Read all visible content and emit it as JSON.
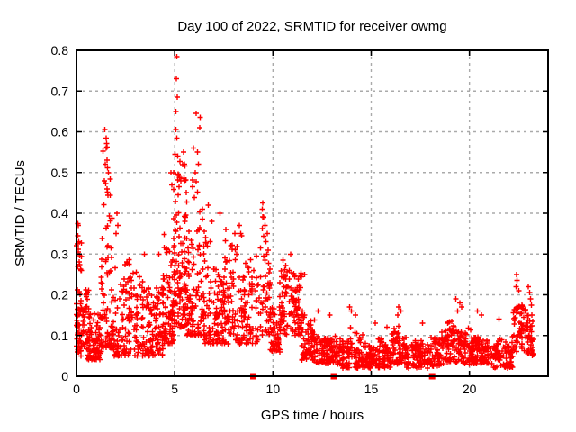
{
  "chart_data": {
    "type": "scatter",
    "title": "Day 100 of 2022, SRMTID for receiver owmg",
    "xlabel": "GPS time / hours",
    "ylabel": "SRMTID / TECUs",
    "xlim": [
      0,
      24
    ],
    "ylim": [
      0,
      0.8
    ],
    "xticks": [
      0,
      5,
      10,
      15,
      20
    ],
    "xtick_labels": [
      "0",
      "5",
      "10",
      "15",
      "20"
    ],
    "yticks": [
      0,
      0.1,
      0.2,
      0.3,
      0.4,
      0.5,
      0.6,
      0.7,
      0.8
    ],
    "ytick_labels": [
      "0",
      "0.1",
      "0.2",
      "0.3",
      "0.4",
      "0.5",
      "0.6",
      "0.7",
      "0.8"
    ],
    "grid": true,
    "legend": "none",
    "marker": "plus",
    "marker_color": "#ff0000",
    "grid_color": "#aaaaaa",
    "border_color": "#000000",
    "background_color": "#ffffff",
    "description": "Dense red '+' scatter of SRMTID vs GPS time; high variance 0-11.5 h with spikes near 1.5 h (0.61), 5.1 h (0.79), 6.2 h (0.65), 9.5 h (0.42); quiet band 0.02-0.15 from 11.5-22 h rising to ~0.25 near 23 h; three red square markers on the x-axis.",
    "density_cluster_fields": [
      "x_start",
      "x_end",
      "y_min",
      "y_max",
      "n_points",
      "low_bias_skew"
    ],
    "density_clusters": [
      [
        0.0,
        0.35,
        0.05,
        0.25,
        55,
        1.4
      ],
      [
        0.0,
        0.25,
        0.24,
        0.38,
        10,
        1.0
      ],
      [
        0.35,
        1.25,
        0.04,
        0.22,
        110,
        1.5
      ],
      [
        1.25,
        1.8,
        0.07,
        0.45,
        65,
        1.9
      ],
      [
        1.35,
        1.7,
        0.42,
        0.61,
        10,
        1.0
      ],
      [
        1.8,
        2.7,
        0.05,
        0.33,
        95,
        1.8
      ],
      [
        2.7,
        4.4,
        0.05,
        0.27,
        160,
        1.7
      ],
      [
        4.4,
        4.95,
        0.08,
        0.48,
        75,
        1.8
      ],
      [
        4.95,
        5.6,
        0.12,
        0.6,
        120,
        1.6
      ],
      [
        5.6,
        6.5,
        0.1,
        0.52,
        110,
        1.7
      ],
      [
        6.5,
        8.2,
        0.08,
        0.36,
        170,
        1.7
      ],
      [
        8.2,
        9.3,
        0.08,
        0.3,
        95,
        1.6
      ],
      [
        9.35,
        9.85,
        0.1,
        0.41,
        45,
        1.2
      ],
      [
        9.85,
        10.35,
        0.06,
        0.22,
        50,
        1.5
      ],
      [
        10.35,
        11.45,
        0.1,
        0.28,
        115,
        1.3
      ],
      [
        11.45,
        12.1,
        0.04,
        0.2,
        65,
        1.5
      ],
      [
        12.1,
        13.2,
        0.03,
        0.13,
        95,
        1.3
      ],
      [
        13.2,
        14.6,
        0.02,
        0.13,
        115,
        1.3
      ],
      [
        14.6,
        16.0,
        0.02,
        0.11,
        120,
        1.2
      ],
      [
        16.0,
        16.8,
        0.03,
        0.14,
        70,
        1.2
      ],
      [
        16.8,
        18.6,
        0.02,
        0.1,
        140,
        1.2
      ],
      [
        18.6,
        20.1,
        0.03,
        0.14,
        135,
        1.2
      ],
      [
        20.1,
        21.1,
        0.03,
        0.13,
        90,
        1.2
      ],
      [
        21.1,
        22.2,
        0.02,
        0.12,
        90,
        1.2
      ],
      [
        22.2,
        22.65,
        0.06,
        0.21,
        40,
        1.1
      ],
      [
        22.65,
        23.25,
        0.05,
        0.2,
        60,
        1.0
      ]
    ],
    "peak_points": [
      [
        0.07,
        0.375
      ],
      [
        0.1,
        0.37
      ],
      [
        0.08,
        0.345
      ],
      [
        0.12,
        0.33
      ],
      [
        0.05,
        0.325
      ],
      [
        0.1,
        0.305
      ],
      [
        0.06,
        0.27
      ],
      [
        1.45,
        0.605
      ],
      [
        1.5,
        0.585
      ],
      [
        1.52,
        0.56
      ],
      [
        1.56,
        0.53
      ],
      [
        1.47,
        0.52
      ],
      [
        1.62,
        0.5
      ],
      [
        1.42,
        0.48
      ],
      [
        1.55,
        0.46
      ],
      [
        2.05,
        0.4
      ],
      [
        2.1,
        0.37
      ],
      [
        2.02,
        0.35
      ],
      [
        3.45,
        0.3
      ],
      [
        4.2,
        0.3
      ],
      [
        4.82,
        0.5
      ],
      [
        4.86,
        0.47
      ],
      [
        5.1,
        0.785
      ],
      [
        5.08,
        0.73
      ],
      [
        5.12,
        0.685
      ],
      [
        5.05,
        0.65
      ],
      [
        5.06,
        0.605
      ],
      [
        5.1,
        0.585
      ],
      [
        5.02,
        0.545
      ],
      [
        5.15,
        0.54
      ],
      [
        5.45,
        0.55
      ],
      [
        5.5,
        0.52
      ],
      [
        6.1,
        0.645
      ],
      [
        6.3,
        0.635
      ],
      [
        6.28,
        0.61
      ],
      [
        5.95,
        0.56
      ],
      [
        6.15,
        0.55
      ],
      [
        6.2,
        0.52
      ],
      [
        6.05,
        0.5
      ],
      [
        6.7,
        0.42
      ],
      [
        7.3,
        0.4
      ],
      [
        6.9,
        0.38
      ],
      [
        7.6,
        0.36
      ],
      [
        8.05,
        0.35
      ],
      [
        8.3,
        0.37
      ],
      [
        8.35,
        0.35
      ],
      [
        8.4,
        0.345
      ],
      [
        9.48,
        0.425
      ],
      [
        9.45,
        0.41
      ],
      [
        9.52,
        0.39
      ],
      [
        9.6,
        0.37
      ],
      [
        9.7,
        0.35
      ],
      [
        9.65,
        0.33
      ],
      [
        10.9,
        0.3
      ],
      [
        10.5,
        0.285
      ],
      [
        11.6,
        0.25
      ],
      [
        12.3,
        0.16
      ],
      [
        12.9,
        0.15
      ],
      [
        13.9,
        0.17
      ],
      [
        14.0,
        0.16
      ],
      [
        14.2,
        0.15
      ],
      [
        15.2,
        0.13
      ],
      [
        15.8,
        0.12
      ],
      [
        16.4,
        0.17
      ],
      [
        16.5,
        0.16
      ],
      [
        16.35,
        0.15
      ],
      [
        17.6,
        0.13
      ],
      [
        19.3,
        0.19
      ],
      [
        19.5,
        0.18
      ],
      [
        19.6,
        0.17
      ],
      [
        19.4,
        0.16
      ],
      [
        20.4,
        0.16
      ],
      [
        20.6,
        0.15
      ],
      [
        21.5,
        0.14
      ],
      [
        22.4,
        0.25
      ],
      [
        22.43,
        0.235
      ],
      [
        22.38,
        0.22
      ],
      [
        22.5,
        0.21
      ],
      [
        23.0,
        0.22
      ],
      [
        23.05,
        0.205
      ],
      [
        23.1,
        0.19
      ],
      [
        23.15,
        0.175
      ]
    ],
    "axis_markers": {
      "marker": "square",
      "color": "#ff0000",
      "y": 0,
      "x": [
        9.0,
        13.1,
        18.1
      ]
    }
  }
}
